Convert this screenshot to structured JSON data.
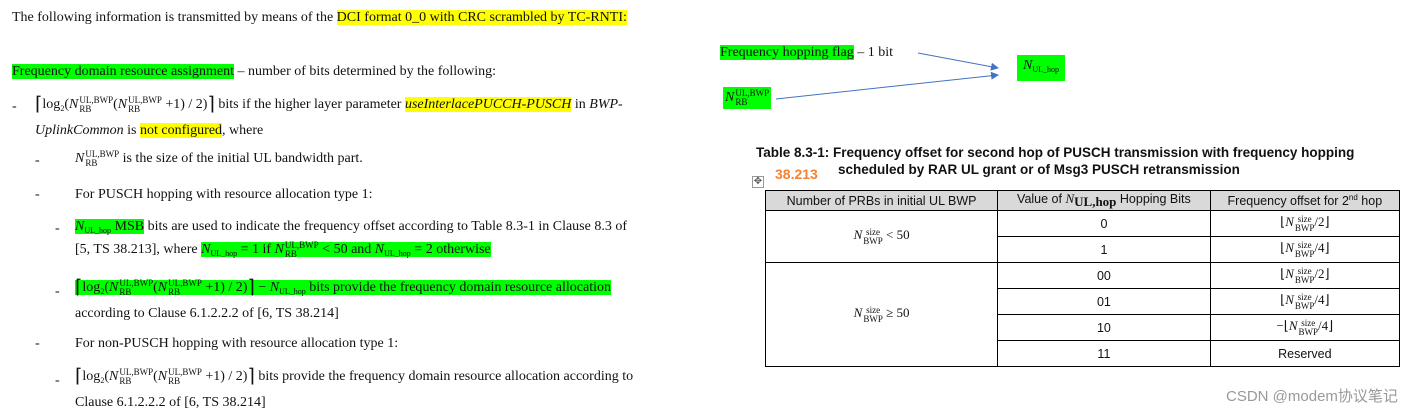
{
  "intro": {
    "text": "The following information is transmitted by means of the ",
    "highlight": "DCI format 0_0 with CRC scrambled by TC-RNTI:"
  },
  "field": {
    "name": "Frequency domain resource assignment",
    "rest": " – number of bits determined by the following:"
  },
  "dash": "-",
  "nrb": {
    "base": "N",
    "sup": "UL,BWP",
    "sub": "RB"
  },
  "nulhop": {
    "base": "N",
    "sub": "UL_hop"
  },
  "formula": {
    "open": "⌈",
    "log": "log",
    "base": "2",
    "p1": "(",
    "p2": "(",
    "tail": " +1) / 2)",
    "close": "⌉"
  },
  "b1": {
    "t1": " bits if the higher layer parameter ",
    "param": "useInterlacePUCCH-PUSCH",
    "t2": " in ",
    "ital1": "BWP-",
    "ital2": "UplinkCommon",
    "t3": " is ",
    "hl": "not configured",
    "t4": ", where"
  },
  "b1a": " is the size of the initial UL bandwidth part.",
  "b1b": "For PUSCH hopping with resource allocation type 1:",
  "b1b1": {
    "msb": "  MSB",
    "t1": " bits are used to indicate the frequency offset according to Table 8.3-1 in Clause 8.3 of",
    "t2": "[5, TS 38.213], where ",
    "eq1": " = 1   if  ",
    "lt": " < 50   and  ",
    "eq2": " = 2   otherwise"
  },
  "b1b2": {
    "minus": " − ",
    "t1": " bits provide the frequency domain resource allocation",
    "t2": "according to Clause 6.1.2.2.2 of [6, TS 38.214]"
  },
  "b1c": "For non-PUSCH hopping with resource allocation type 1:",
  "b1c1": {
    "t1": "   bits provide the frequency domain resource allocation according to",
    "t2": "Clause 6.1.2.2.2 of [6, TS 38.214]"
  },
  "side": {
    "flag": "Frequency hopping flag",
    "flag_rest": " – 1 bit",
    "arrow_color": "#4472c4"
  },
  "table": {
    "title1": "Table 8.3-1: Frequency offset for second hop of PUSCH transmission with frequency hopping",
    "title2": "scheduled by RAR UL grant or of Msg3 PUSCH retransmission",
    "spec": "38.213",
    "headers": {
      "c1": "Number of PRBs in initial UL BWP",
      "c2a": "Value of ",
      "c2n": "N",
      "c2s": "UL,hop",
      "c2b": " Hopping Bits",
      "c3a": "Frequency offset for 2",
      "c3s": "nd",
      "c3b": " hop"
    },
    "nbwp": {
      "base": "N",
      "sup": "size",
      "sub": "BWP"
    },
    "group1": {
      "cond": " < 50",
      "rows": [
        {
          "bits": "0",
          "pre": "⌊",
          "post": "/2⌋"
        },
        {
          "bits": "1",
          "pre": "⌊",
          "post": "/4⌋"
        }
      ]
    },
    "group2": {
      "cond": " ≥ 50",
      "rows": [
        {
          "bits": "00",
          "pre": "⌊",
          "post": "/2⌋"
        },
        {
          "bits": "01",
          "pre": "⌊",
          "post": "/4⌋"
        },
        {
          "bits": "10",
          "pre": "−⌊",
          "post": "/4⌋"
        },
        {
          "bits": "11",
          "text": "Reserved"
        }
      ]
    }
  },
  "watermark": "CSDN @modem协议笔记",
  "colors": {
    "yellow": "#ffff00",
    "green": "#00ff00",
    "orange": "#f58233"
  }
}
